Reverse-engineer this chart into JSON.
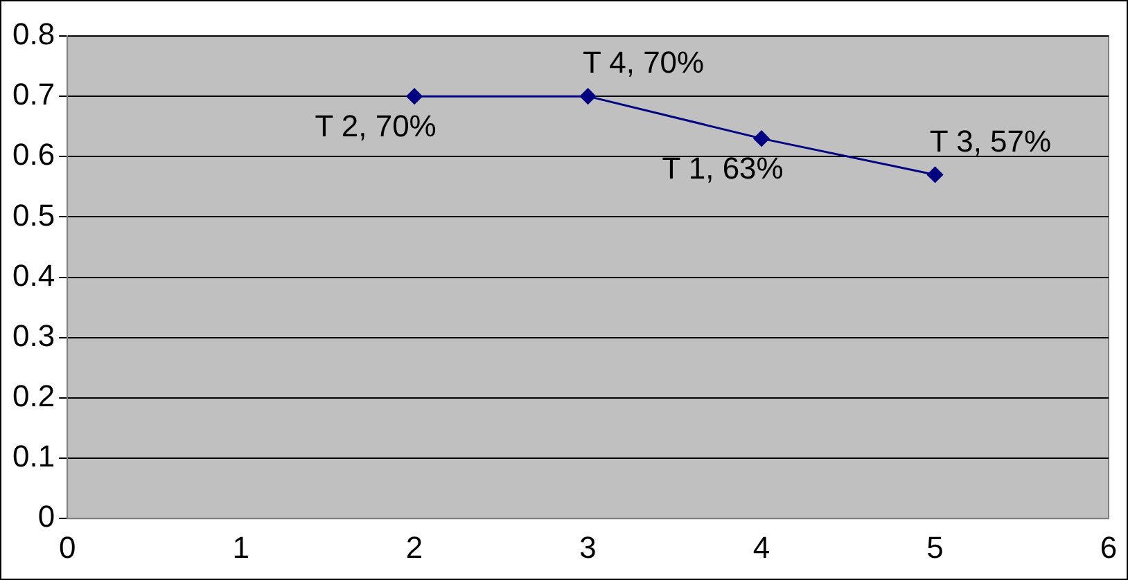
{
  "chart_data": {
    "type": "line",
    "x": [
      2,
      3,
      4,
      5
    ],
    "series": [
      {
        "color": "#000080",
        "values": [
          0.7,
          0.7,
          0.63,
          0.57
        ]
      }
    ],
    "xlim": [
      0,
      6
    ],
    "xticks": [
      0,
      1,
      2,
      3,
      4,
      5,
      6
    ],
    "ylim": [
      0,
      0.8
    ],
    "yticks": [
      0,
      0.1,
      0.2,
      0.3,
      0.4,
      0.5,
      0.6,
      0.7,
      0.8
    ],
    "grid": "y",
    "legend": false,
    "marker": "diamond",
    "line_style": "solid",
    "annotations": [
      {
        "text": "T 2, 70%",
        "x": 2,
        "y": 0.7
      },
      {
        "text": "T 4, 70%",
        "x": 3,
        "y": 0.7
      },
      {
        "text": "T 1, 63%",
        "x": 4,
        "y": 0.63
      },
      {
        "text": "T 3, 57%",
        "x": 5,
        "y": 0.57
      }
    ]
  }
}
